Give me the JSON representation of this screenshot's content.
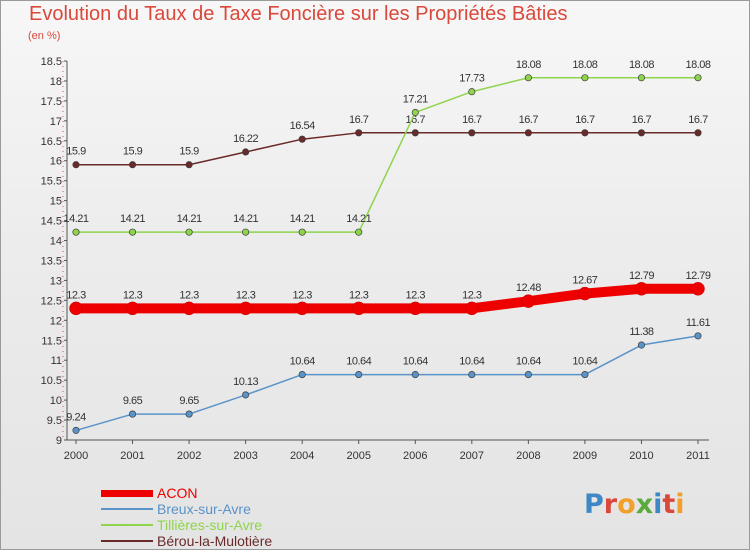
{
  "colors": {
    "title": "#d9483b",
    "ACON": "#ee0000",
    "Breux-sur-Avre": "#5a93c9",
    "Tillières-sur-Avre": "#8ed44c",
    "Bérou-la-Mulotière": "#6b2a2a"
  },
  "logo_text": "Proxiti",
  "chart_data": {
    "type": "line",
    "title": "Evolution du Taux de Taxe Foncière sur les Propriétés Bâties",
    "ylabel": "(en %)",
    "xlabel": "",
    "ylim": [
      9,
      18.5
    ],
    "yticks": [
      "9",
      "9.5",
      "10",
      "10.5",
      "11",
      "11.5",
      "12",
      "12.5",
      "13",
      "13.5",
      "14",
      "14.5",
      "15",
      "15.5",
      "16",
      "16.5",
      "17",
      "17.5",
      "18",
      "18.5"
    ],
    "x": [
      "2000",
      "2001",
      "2002",
      "2003",
      "2004",
      "2005",
      "2006",
      "2007",
      "2008",
      "2009",
      "2010",
      "2011"
    ],
    "series": [
      {
        "name": "ACON",
        "values": [
          12.3,
          12.3,
          12.3,
          12.3,
          12.3,
          12.3,
          12.3,
          12.3,
          12.48,
          12.67,
          12.79,
          12.79
        ],
        "labels": [
          "12.3",
          "12.3",
          "12.3",
          "12.3",
          "12.3",
          "12.3",
          "12.3",
          "12.3",
          "12.48",
          "12.67",
          "12.79",
          "12.79"
        ]
      },
      {
        "name": "Breux-sur-Avre",
        "values": [
          9.24,
          9.65,
          9.65,
          10.13,
          10.64,
          10.64,
          10.64,
          10.64,
          10.64,
          10.64,
          11.38,
          11.61
        ],
        "labels": [
          "9.24",
          "9.65",
          "9.65",
          "10.13",
          "10.64",
          "10.64",
          "10.64",
          "10.64",
          "10.64",
          "10.64",
          "11.38",
          "11.61"
        ]
      },
      {
        "name": "Tillières-sur-Avre",
        "values": [
          14.21,
          14.21,
          14.21,
          14.21,
          14.21,
          14.21,
          17.21,
          17.73,
          18.08,
          18.08,
          18.08,
          18.08
        ],
        "labels": [
          "14.21",
          "14.21",
          "14.21",
          "14.21",
          "14.21",
          "14.21",
          "17.21",
          "17.73",
          "18.08",
          "18.08",
          "18.08",
          "18.08"
        ]
      },
      {
        "name": "Bérou-la-Mulotière",
        "values": [
          15.9,
          15.9,
          15.9,
          16.22,
          16.54,
          16.7,
          16.7,
          16.7,
          16.7,
          16.7,
          16.7,
          16.7
        ],
        "labels": [
          "15.9",
          "15.9",
          "15.9",
          "16.22",
          "16.54",
          "16.7",
          "16.7",
          "16.7",
          "16.7",
          "16.7",
          "16.7",
          "16.7"
        ]
      }
    ],
    "legend": [
      "ACON",
      "Breux-sur-Avre",
      "Tillières-sur-Avre",
      "Bérou-la-Mulotière"
    ],
    "legend_position": "bottom-left",
    "grid": false
  }
}
